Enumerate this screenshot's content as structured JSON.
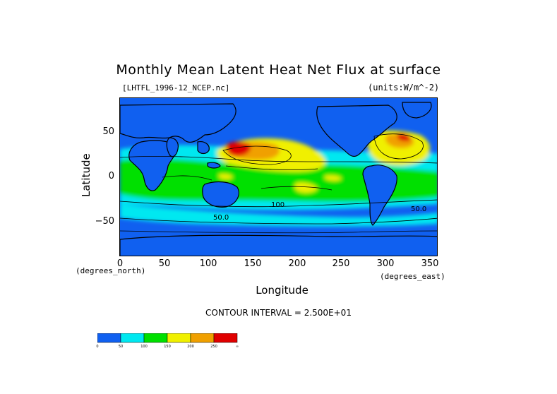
{
  "title": "Monthly Mean Latent Heat Net Flux at surface",
  "file_label": "[LHTFL_1996-12_NCEP.nc]",
  "units_label": "(units:W/m^-2)",
  "y_axis_label": "Latitude",
  "x_axis_label": "Longitude",
  "y_units": "(degrees_north)",
  "x_units": "(degrees_east)",
  "contour_interval": "CONTOUR INTERVAL = 2.500E+01",
  "y_ticks": [
    "50",
    "0",
    "−50"
  ],
  "x_ticks": [
    "0",
    "50",
    "100",
    "150",
    "200",
    "250",
    "300",
    "350"
  ],
  "contour_labels": [
    "100",
    "50.0",
    "50.0"
  ],
  "colors": {
    "c0": "#1060f0",
    "c1": "#00e8f0",
    "c2": "#00e000",
    "c3": "#f0f000",
    "c4": "#f0a000",
    "c5": "#e00000",
    "land_outline": "#000000"
  },
  "colorbar": {
    "labels": [
      "0",
      "50",
      "100",
      "150",
      "200",
      "250",
      "∞"
    ]
  }
}
